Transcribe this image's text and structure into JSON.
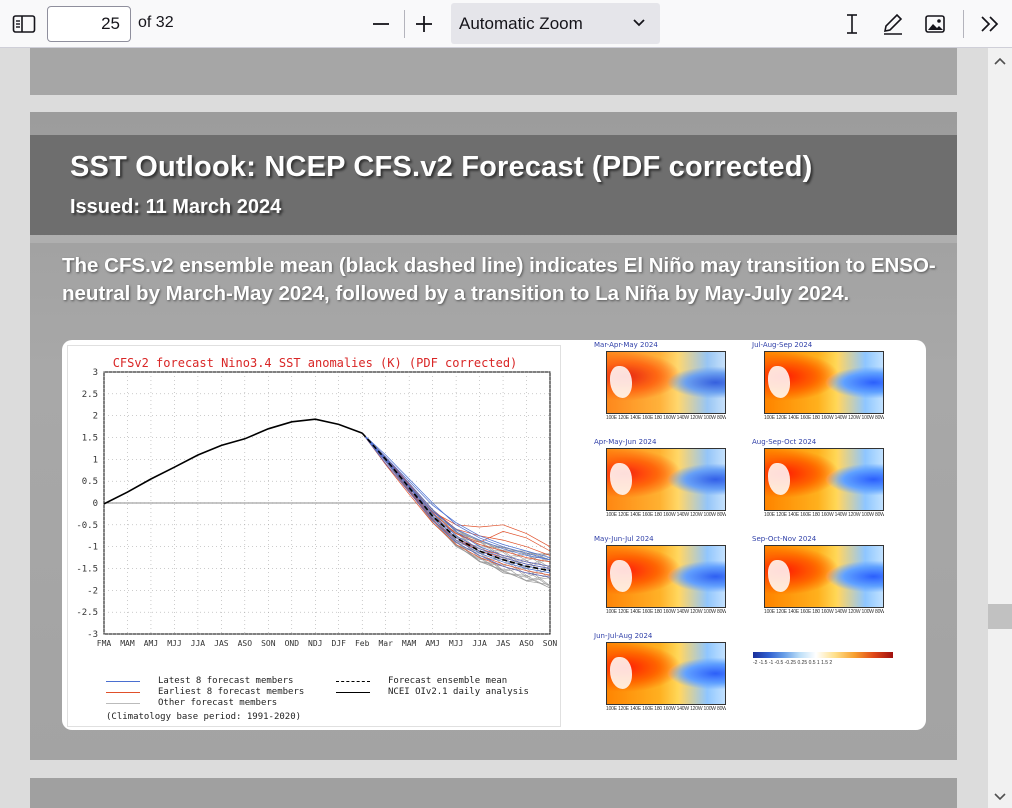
{
  "toolbar": {
    "page_number": "25",
    "page_count": "of 32",
    "zoom": "Automatic Zoom",
    "icons": [
      "sidebar-toggle-icon",
      "zoom-out-icon",
      "zoom-in-icon",
      "chevron-down-icon",
      "text-cursor-icon",
      "pen-icon",
      "image-icon",
      "double-chevron-right-icon"
    ]
  },
  "slide": {
    "title": "SST Outlook: NCEP CFS.v2 Forecast (PDF corrected)",
    "issued": "Issued: 11 March 2024",
    "body": "The CFS.v2 ensemble mean (black dashed line) indicates El Niño may transition to ENSO-neutral by March-May 2024, followed by a transition to La Niña by May-July 2024."
  },
  "chart_data": {
    "type": "line",
    "title": "CFSv2 forecast Nino3.4 SST anomalies (K) (PDF corrected)",
    "categories": [
      "FMA",
      "MAM",
      "AMJ",
      "MJJ",
      "JJA",
      "JAS",
      "ASO",
      "SON",
      "OND",
      "NDJ",
      "DJF",
      "Feb",
      "Mar",
      "MAM",
      "AMJ",
      "MJJ",
      "JJA",
      "JAS",
      "ASO",
      "SON"
    ],
    "yticks": [
      "3",
      "2.5",
      "2",
      "1.5",
      "1",
      "0.5",
      "0",
      "-0.5",
      "-1",
      "-1.5",
      "-2",
      "-2.5",
      "-3"
    ],
    "ylim": [
      -3,
      3
    ],
    "grid": true,
    "analysis": {
      "name": "NCEI OIv2.1 daily analysis",
      "x": [
        0,
        1,
        2,
        3,
        4,
        5,
        6,
        7,
        8,
        9,
        10,
        11
      ],
      "values": [
        -0.02,
        0.25,
        0.55,
        0.82,
        1.1,
        1.32,
        1.47,
        1.7,
        1.86,
        1.92,
        1.8,
        1.6
      ]
    },
    "ensemble_mean": {
      "name": "Forecast ensemble mean",
      "x": [
        11,
        12,
        13,
        14,
        15,
        16,
        17,
        18,
        19
      ],
      "values": [
        1.6,
        1.0,
        0.35,
        -0.3,
        -0.8,
        -1.1,
        -1.3,
        -1.45,
        -1.55
      ]
    },
    "latest_members": {
      "name": "Latest 8 forecast members",
      "color": "#4a6fd0",
      "series": [
        [
          1.6,
          1.05,
          0.5,
          -0.05,
          -0.45,
          -0.75,
          -0.95,
          -1.1,
          -1.25
        ],
        [
          1.6,
          1.0,
          0.4,
          -0.2,
          -0.6,
          -0.85,
          -1.05,
          -1.2,
          -1.3
        ],
        [
          1.6,
          1.1,
          0.55,
          0.0,
          -0.5,
          -0.8,
          -1.0,
          -1.15,
          -1.3
        ],
        [
          1.6,
          0.95,
          0.3,
          -0.35,
          -0.85,
          -1.15,
          -1.35,
          -1.5,
          -1.6
        ],
        [
          1.6,
          1.0,
          0.38,
          -0.25,
          -0.75,
          -1.05,
          -1.25,
          -1.4,
          -1.5
        ],
        [
          1.6,
          0.9,
          0.25,
          -0.4,
          -0.9,
          -1.2,
          -1.45,
          -1.6,
          -1.7
        ],
        [
          1.6,
          1.02,
          0.45,
          -0.15,
          -0.65,
          -1.0,
          -1.2,
          -1.35,
          -1.45
        ],
        [
          1.6,
          0.98,
          0.35,
          -0.3,
          -0.8,
          -1.1,
          -1.3,
          -1.45,
          -1.55
        ]
      ]
    },
    "earliest_members": {
      "name": "Earliest 8 forecast members",
      "color": "#e0502a",
      "series": [
        [
          1.6,
          1.0,
          0.4,
          -0.2,
          -0.5,
          -0.55,
          -0.5,
          -0.7,
          -1.0
        ],
        [
          1.6,
          0.95,
          0.3,
          -0.3,
          -0.7,
          -0.9,
          -0.65,
          -0.8,
          -1.1
        ],
        [
          1.6,
          1.05,
          0.45,
          -0.15,
          -0.6,
          -0.75,
          -0.85,
          -1.0,
          -1.2
        ],
        [
          1.6,
          0.9,
          0.25,
          -0.4,
          -0.85,
          -1.1,
          -1.25,
          -1.4,
          -1.5
        ],
        [
          1.6,
          0.95,
          0.28,
          -0.38,
          -0.9,
          -1.2,
          -1.4,
          -1.55,
          -1.65
        ],
        [
          1.6,
          1.0,
          0.35,
          -0.3,
          -0.8,
          -1.05,
          -1.2,
          -1.35,
          -1.45
        ],
        [
          1.6,
          0.88,
          0.2,
          -0.45,
          -0.95,
          -1.25,
          -1.45,
          -1.6,
          -1.7
        ],
        [
          1.6,
          1.02,
          0.42,
          -0.22,
          -0.7,
          -0.95,
          -1.1,
          -1.25,
          -1.35
        ]
      ]
    },
    "other_members_label": "Other forecast members",
    "climatology_note": "(Climatology base period: 1991-2020)"
  },
  "maps": [
    {
      "title": "Mar-Apr-May 2024",
      "intensity": 0.55
    },
    {
      "title": "Jul-Aug-Sep 2024",
      "intensity": 1.0
    },
    {
      "title": "Apr-May-Jun 2024",
      "intensity": 0.7
    },
    {
      "title": "Aug-Sep-Oct 2024",
      "intensity": 1.0
    },
    {
      "title": "May-Jun-Jul 2024",
      "intensity": 0.85
    },
    {
      "title": "Sep-Oct-Nov 2024",
      "intensity": 1.0
    },
    {
      "title": "Jun-Jul-Aug 2024",
      "intensity": 0.95
    }
  ],
  "map_ticks": "100E 120E 140E 160E 180 160W 140W 120W 100W 80W",
  "colorbar_ticks": "-2  -1.5  -1  -0.5 -0.25 0.25 0.5  1  1.5  2"
}
